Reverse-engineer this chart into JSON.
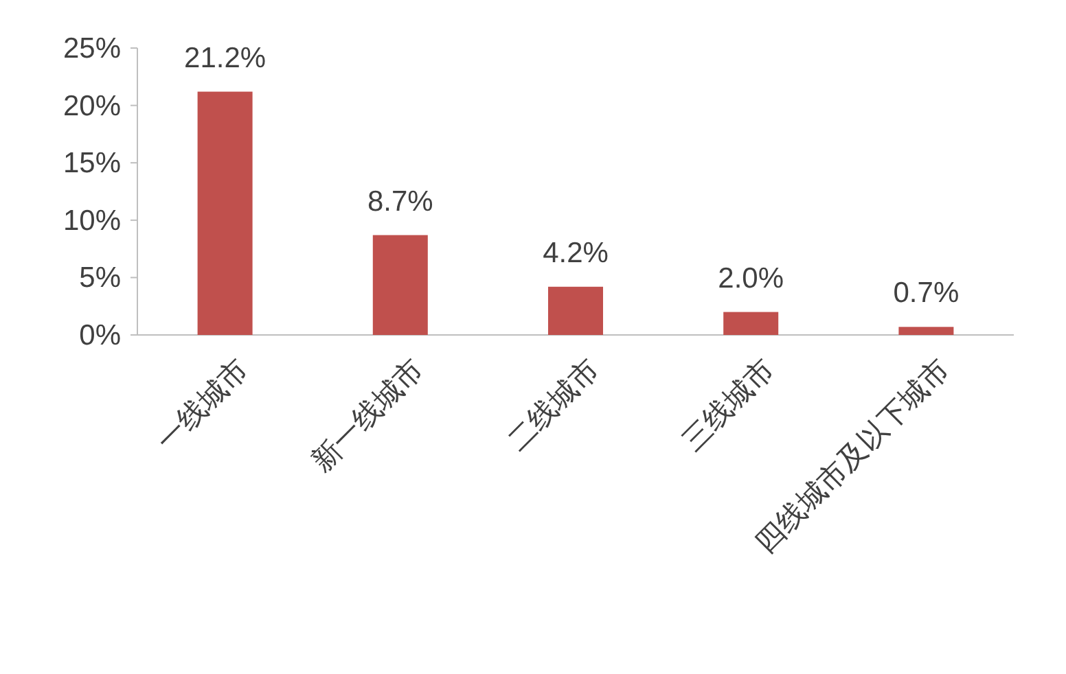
{
  "chart_data": {
    "type": "bar",
    "categories": [
      "一线城市",
      "新一线城市",
      "二线城市",
      "三线城市",
      "四线城市及以下城市"
    ],
    "values": [
      21.2,
      8.7,
      4.2,
      2.0,
      0.7
    ],
    "color": "#c0504d",
    "value_labels": [
      "21.2%",
      "8.7%",
      "4.2%",
      "2.0%",
      "0.7%"
    ],
    "ylim": [
      0,
      25
    ],
    "yticks": [
      {
        "value": 0,
        "label": "0%"
      },
      {
        "value": 5,
        "label": "5%"
      },
      {
        "value": 10,
        "label": "10%"
      },
      {
        "value": 15,
        "label": "15%"
      },
      {
        "value": 20,
        "label": "20%"
      },
      {
        "value": 25,
        "label": "25%"
      }
    ]
  }
}
